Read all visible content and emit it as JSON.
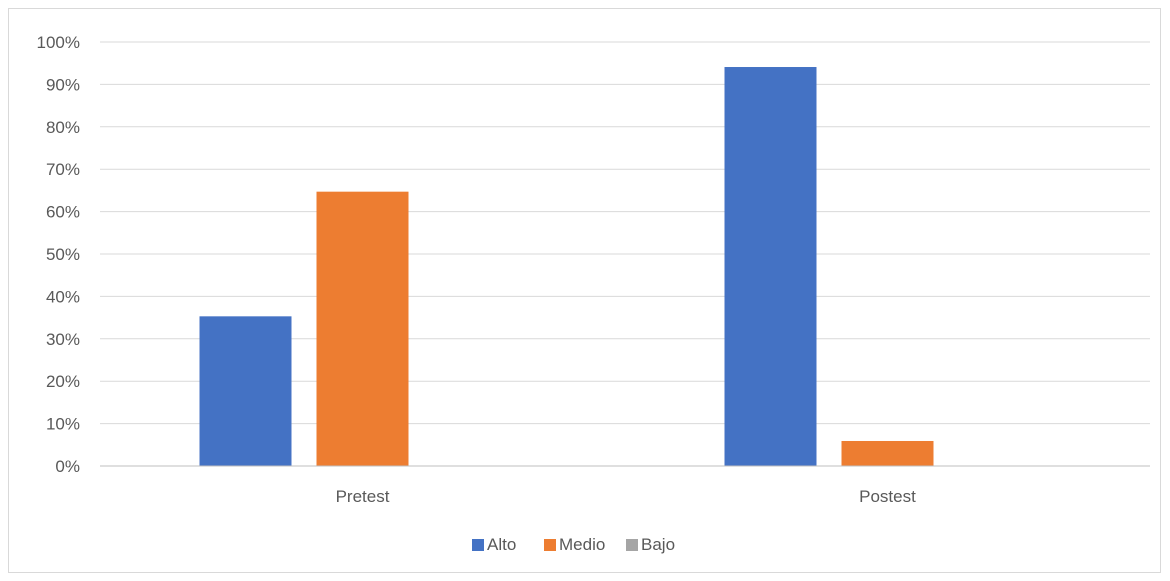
{
  "chart_data": {
    "type": "bar",
    "categories": [
      "Pretest",
      "Postest"
    ],
    "series": [
      {
        "name": "Alto",
        "values": [
          35.3,
          94.1
        ],
        "color": "#4472c4"
      },
      {
        "name": "Medio",
        "values": [
          64.7,
          5.9
        ],
        "color": "#ed7d31"
      },
      {
        "name": "Bajo",
        "values": [
          0,
          0
        ],
        "color": "#a5a5a5"
      }
    ],
    "y_ticks": [
      "0%",
      "10%",
      "20%",
      "30%",
      "40%",
      "50%",
      "60%",
      "70%",
      "80%",
      "90%",
      "100%"
    ],
    "ylim": [
      0,
      100
    ],
    "y_unit": "%",
    "grid": true,
    "legend_position": "bottom",
    "xlabel": "",
    "ylabel": ""
  }
}
